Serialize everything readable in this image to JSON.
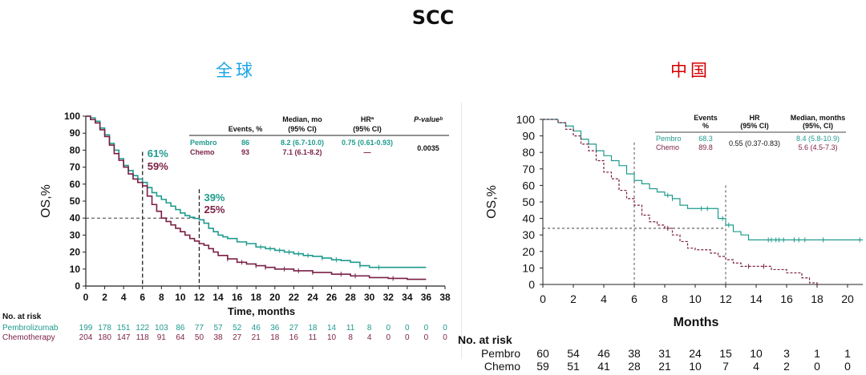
{
  "page_title": "SCC",
  "colors": {
    "pembro": "#1f9b8e",
    "chemo": "#7a1f45",
    "global_title": "#1aa3e8",
    "china_title": "#d60000"
  },
  "chart_data": [
    {
      "type": "line",
      "title": "全球",
      "ylabel": "OS,%",
      "xlabel": "Time, months",
      "xlim": [
        0,
        38
      ],
      "ylim": [
        0,
        100
      ],
      "x_ticks": [
        "0",
        "2",
        "4",
        "6",
        "8",
        "10",
        "12",
        "14",
        "16",
        "18",
        "20",
        "22",
        "24",
        "26",
        "28",
        "30",
        "32",
        "34",
        "36",
        "38"
      ],
      "y_ticks": [
        "0",
        "10",
        "20",
        "30",
        "40",
        "50",
        "60",
        "70",
        "80",
        "90",
        "100"
      ],
      "series": [
        {
          "name": "Pembro",
          "color": "#1f9b8e",
          "points": [
            [
              0,
              100
            ],
            [
              0.5,
              99
            ],
            [
              1,
              97
            ],
            [
              1.5,
              93
            ],
            [
              2,
              89
            ],
            [
              2.5,
              84
            ],
            [
              3,
              80
            ],
            [
              3.5,
              75
            ],
            [
              4,
              71
            ],
            [
              4.5,
              68
            ],
            [
              5,
              65
            ],
            [
              5.5,
              63
            ],
            [
              6,
              61
            ],
            [
              6.5,
              58
            ],
            [
              7,
              55
            ],
            [
              7.5,
              53
            ],
            [
              8,
              51
            ],
            [
              8.5,
              49
            ],
            [
              9,
              47
            ],
            [
              9.5,
              45
            ],
            [
              10,
              43
            ],
            [
              10.5,
              41.5
            ],
            [
              11,
              40.5
            ],
            [
              11.5,
              39.8
            ],
            [
              12,
              39
            ],
            [
              12.5,
              37
            ],
            [
              13,
              34
            ],
            [
              13.5,
              32
            ],
            [
              14,
              30
            ],
            [
              14.5,
              29
            ],
            [
              15,
              28
            ],
            [
              16,
              26
            ],
            [
              17,
              25
            ],
            [
              18,
              23
            ],
            [
              19,
              22
            ],
            [
              20,
              21
            ],
            [
              21,
              20
            ],
            [
              22,
              19
            ],
            [
              23,
              18
            ],
            [
              24,
              17.5
            ],
            [
              25,
              16.5
            ],
            [
              26,
              15.5
            ],
            [
              27,
              15
            ],
            [
              28,
              14
            ],
            [
              29,
              12
            ],
            [
              30,
              11
            ],
            [
              31,
              11
            ],
            [
              33,
              11
            ],
            [
              36,
              11
            ]
          ]
        },
        {
          "name": "Chemo",
          "color": "#7a1f45",
          "points": [
            [
              0,
              100
            ],
            [
              0.5,
              98
            ],
            [
              1,
              96
            ],
            [
              1.5,
              92
            ],
            [
              2,
              88
            ],
            [
              2.5,
              83
            ],
            [
              3,
              78
            ],
            [
              3.5,
              74
            ],
            [
              4,
              70
            ],
            [
              4.5,
              66
            ],
            [
              5,
              63
            ],
            [
              5.5,
              61
            ],
            [
              6,
              59
            ],
            [
              6.5,
              53
            ],
            [
              7,
              48
            ],
            [
              7.5,
              44
            ],
            [
              8,
              40
            ],
            [
              8.5,
              38
            ],
            [
              9,
              36
            ],
            [
              9.5,
              34
            ],
            [
              10,
              32
            ],
            [
              10.5,
              30
            ],
            [
              11,
              28
            ],
            [
              11.5,
              26.5
            ],
            [
              12,
              25
            ],
            [
              12.5,
              24
            ],
            [
              13,
              22
            ],
            [
              13.5,
              20
            ],
            [
              14,
              18
            ],
            [
              15,
              16
            ],
            [
              16,
              14
            ],
            [
              17,
              13
            ],
            [
              18,
              12
            ],
            [
              19,
              11
            ],
            [
              20,
              10
            ],
            [
              22,
              9
            ],
            [
              24,
              8
            ],
            [
              26,
              7
            ],
            [
              28,
              6
            ],
            [
              30,
              5
            ],
            [
              32,
              4.5
            ],
            [
              34,
              4
            ],
            [
              36,
              4
            ]
          ]
        }
      ],
      "annotations": {
        "m6": {
          "pembro": "61%",
          "chemo": "59%"
        },
        "m12": {
          "pembro": "39%",
          "chemo": "25%"
        }
      },
      "table": {
        "headers": [
          "Events, %",
          "Median, mo\n(95% CI)",
          "HRª\n(95% CI)",
          "P-valueᵇ"
        ],
        "header_line1": [
          "",
          "Median, mo",
          "HRª",
          "P-valueᵇ"
        ],
        "header_line2": [
          "Events, %",
          "(95% CI)",
          "(95% CI)",
          ""
        ],
        "rows": [
          {
            "label": "Pembro",
            "events": "86",
            "median": "8.2 (6.7-10.0)",
            "hr": "0.75 (0.61-0.93)",
            "p": "0.0035"
          },
          {
            "label": "Chemo",
            "events": "93",
            "median": "7.1 (6.1-8.2)",
            "hr": "—",
            "p": ""
          }
        ]
      },
      "at_risk": {
        "title": "No. at risk",
        "rows": [
          {
            "label": "Pembrolizumab",
            "values": [
              "199",
              "178",
              "151",
              "122",
              "103",
              "86",
              "77",
              "57",
              "52",
              "46",
              "36",
              "27",
              "18",
              "14",
              "11",
              "8",
              "0",
              "0",
              "0",
              "0"
            ]
          },
          {
            "label": "Chemotherapy",
            "values": [
              "204",
              "180",
              "147",
              "118",
              "91",
              "64",
              "50",
              "38",
              "27",
              "21",
              "18",
              "16",
              "11",
              "10",
              "8",
              "4",
              "0",
              "0",
              "0",
              "0"
            ]
          }
        ]
      }
    },
    {
      "type": "line",
      "title": "中国",
      "ylabel": "OS,%",
      "xlabel": "Months",
      "xlim": [
        0,
        21
      ],
      "ylim": [
        0,
        100
      ],
      "x_ticks": [
        "0",
        "2",
        "4",
        "6",
        "8",
        "10",
        "12",
        "14",
        "16",
        "18",
        "20"
      ],
      "y_ticks": [
        "0",
        "10",
        "20",
        "30",
        "40",
        "50",
        "60",
        "70",
        "80",
        "90",
        "100"
      ],
      "series": [
        {
          "name": "Pembro",
          "color": "#1f9b8e",
          "points": [
            [
              0,
              100
            ],
            [
              1,
              98
            ],
            [
              1.5,
              96
            ],
            [
              2,
              93
            ],
            [
              2.5,
              88
            ],
            [
              3,
              85
            ],
            [
              3.5,
              81
            ],
            [
              4,
              78
            ],
            [
              4.5,
              75
            ],
            [
              5,
              72
            ],
            [
              5.5,
              67
            ],
            [
              6,
              63
            ],
            [
              6.5,
              61
            ],
            [
              7,
              58
            ],
            [
              7.5,
              56
            ],
            [
              8,
              54
            ],
            [
              8.5,
              52
            ],
            [
              9,
              48
            ],
            [
              9.5,
              46
            ],
            [
              10,
              46
            ],
            [
              11,
              46
            ],
            [
              11.5,
              40
            ],
            [
              12,
              36
            ],
            [
              12.5,
              32
            ],
            [
              13,
              30
            ],
            [
              13.5,
              27
            ],
            [
              14,
              27
            ],
            [
              16,
              27
            ],
            [
              18,
              27
            ],
            [
              21,
              27
            ]
          ]
        },
        {
          "name": "Chemo",
          "color": "#7a1f45",
          "points": [
            [
              0,
              100
            ],
            [
              1,
              98
            ],
            [
              1.5,
              94
            ],
            [
              2,
              90
            ],
            [
              2.5,
              85
            ],
            [
              3,
              81
            ],
            [
              3.5,
              75
            ],
            [
              4,
              68
            ],
            [
              4.5,
              64
            ],
            [
              5,
              57
            ],
            [
              5.5,
              52
            ],
            [
              6,
              48
            ],
            [
              6.5,
              42
            ],
            [
              7,
              38
            ],
            [
              7.5,
              36
            ],
            [
              8,
              34
            ],
            [
              8.5,
              30
            ],
            [
              9,
              26
            ],
            [
              9.5,
              22
            ],
            [
              10,
              21
            ],
            [
              11,
              19
            ],
            [
              11.5,
              17
            ],
            [
              12,
              15
            ],
            [
              12.5,
              13
            ],
            [
              13,
              11
            ],
            [
              14,
              11
            ],
            [
              15,
              9
            ],
            [
              16,
              7
            ],
            [
              17,
              4
            ],
            [
              17.5,
              1
            ],
            [
              18,
              0
            ]
          ]
        }
      ],
      "table": {
        "header_line1": [
          "Events",
          "HR",
          "Median, months"
        ],
        "header_line2": [
          "%",
          "(95% CI)",
          "(95%, CI)"
        ],
        "rows": [
          {
            "label": "Pembro",
            "events": "68.3",
            "median": "8.4 (5.8-10.9)"
          },
          {
            "label": "Chemo",
            "events": "89.8",
            "median": "5.6 (4.5-7.3)"
          }
        ],
        "hr": "0.55 (0.37-0.83)"
      },
      "at_risk": {
        "title": "No. at risk",
        "rows": [
          {
            "label": "Pembro",
            "values": [
              "60",
              "54",
              "46",
              "38",
              "31",
              "24",
              "15",
              "10",
              "3",
              "1",
              "1"
            ]
          },
          {
            "label": "Chemo",
            "values": [
              "59",
              "51",
              "41",
              "28",
              "21",
              "10",
              "7",
              "4",
              "2",
              "0",
              "0"
            ]
          }
        ]
      }
    }
  ]
}
